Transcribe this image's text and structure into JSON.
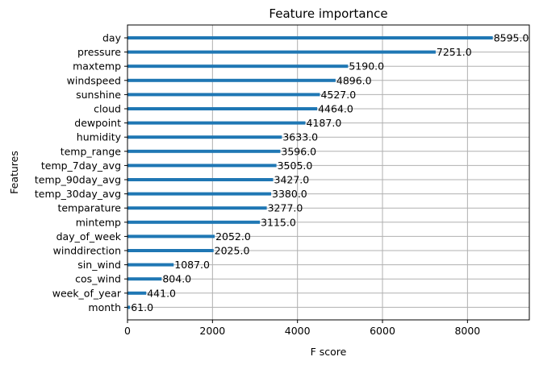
{
  "chart_data": {
    "type": "bar",
    "orientation": "horizontal",
    "title": "Feature importance",
    "xlabel": "F score",
    "ylabel": "Features",
    "xlim": [
      0,
      9455
    ],
    "xticks": [
      0,
      2000,
      4000,
      6000,
      8000
    ],
    "grid": true,
    "bar_color": "#1f77b4",
    "categories": [
      "day",
      "pressure",
      "maxtemp",
      "windspeed",
      "sunshine",
      "cloud",
      "dewpoint",
      "humidity",
      "temp_range",
      "temp_7day_avg",
      "temp_90day_avg",
      "temp_30day_avg",
      "temparature",
      "mintemp",
      "day_of_week",
      "winddirection",
      "sin_wind",
      "cos_wind",
      "week_of_year",
      "month"
    ],
    "values": [
      8595.0,
      7251.0,
      5190.0,
      4896.0,
      4527.0,
      4464.0,
      4187.0,
      3633.0,
      3596.0,
      3505.0,
      3427.0,
      3380.0,
      3277.0,
      3115.0,
      2052.0,
      2025.0,
      1087.0,
      804.0,
      441.0,
      61.0
    ],
    "value_labels": [
      "8595.0",
      "7251.0",
      "5190.0",
      "4896.0",
      "4527.0",
      "4464.0",
      "4187.0",
      "3633.0",
      "3596.0",
      "3505.0",
      "3427.0",
      "3380.0",
      "3277.0",
      "3115.0",
      "2052.0",
      "2025.0",
      "1087.0",
      "804.0",
      "441.0",
      "61.0"
    ]
  }
}
